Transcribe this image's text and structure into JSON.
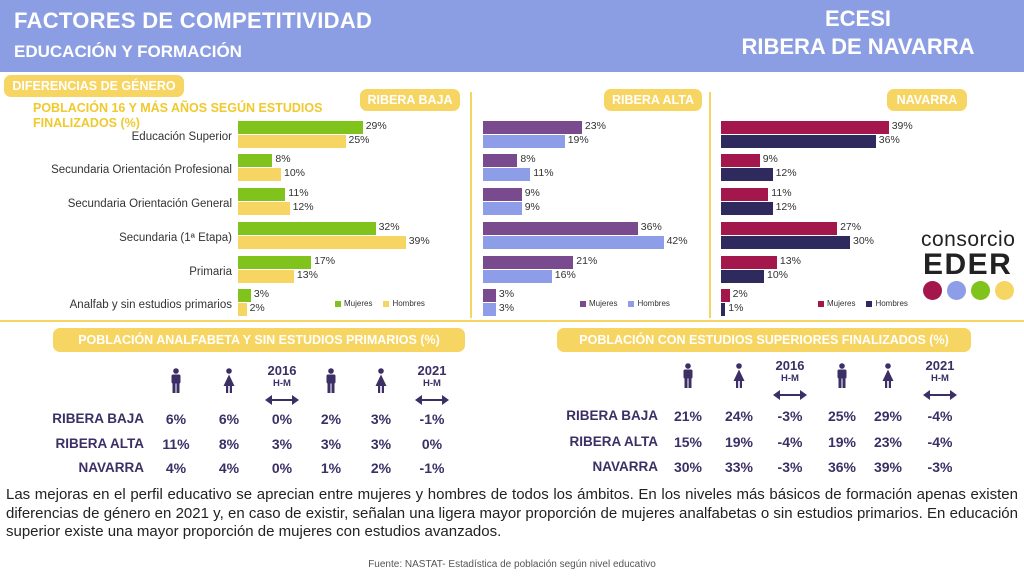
{
  "header": {
    "title": "FACTORES DE COMPETITIVIDAD",
    "subtitle": "EDUCACIÓN Y FORMACIÓN",
    "right_line1": "ECESI",
    "right_line2": "RIBERA DE NAVARRA"
  },
  "section_pill": "DIFERENCIAS DE GÉNERO",
  "chart_subtitle": "POBLACIÓN 16 Y MÁS AÑOS SEGÚN ESTUDIOS FINALIZADOS (%)",
  "categories": [
    "Educación Superior",
    "Secundaria Orientación Profesional",
    "Secundaria  Orientación General",
    "Secundaria (1ª Etapa)",
    "Primaria",
    "Analfab y sin estudios primarios"
  ],
  "chart_data": [
    {
      "type": "bar",
      "title": "RIBERA BAJA",
      "categories": [
        "Educación Superior",
        "Secundaria Orientación Profesional",
        "Secundaria  Orientación General",
        "Secundaria (1ª Etapa)",
        "Primaria",
        "Analfab y sin estudios primarios"
      ],
      "series": [
        {
          "name": "Mujeres",
          "values": [
            29,
            8,
            11,
            32,
            17,
            3
          ],
          "labels": [
            "29%",
            "8%",
            "11%",
            "32%",
            "17%",
            "3%"
          ],
          "color": "#7fc31c"
        },
        {
          "name": "Hombres",
          "values": [
            25,
            10,
            12,
            39,
            13,
            2
          ],
          "labels": [
            "25%",
            "10%",
            "12%",
            "39%",
            "13%",
            "2%"
          ],
          "color": "#f7d562"
        }
      ]
    },
    {
      "type": "bar",
      "title": "RIBERA ALTA",
      "categories": [
        "Educación Superior",
        "Secundaria Orientación Profesional",
        "Secundaria  Orientación General",
        "Secundaria (1ª Etapa)",
        "Primaria",
        "Analfab y sin estudios primarios"
      ],
      "series": [
        {
          "name": "Mujeres",
          "values": [
            23,
            8,
            9,
            36,
            21,
            3
          ],
          "labels": [
            "23%",
            "8%",
            "9%",
            "36%",
            "21%",
            "3%"
          ],
          "color": "#7a4a8e"
        },
        {
          "name": "Hombres",
          "values": [
            19,
            11,
            9,
            42,
            16,
            3
          ],
          "labels": [
            "19%",
            "11%",
            "9%",
            "42%",
            "16%",
            "3%"
          ],
          "color": "#8d9de8"
        }
      ]
    },
    {
      "type": "bar",
      "title": "NAVARRA",
      "categories": [
        "Educación Superior",
        "Secundaria Orientación Profesional",
        "Secundaria  Orientación General",
        "Secundaria (1ª Etapa)",
        "Primaria",
        "Analfab y sin estudios primarios"
      ],
      "series": [
        {
          "name": "Mujeres",
          "values": [
            39,
            9,
            11,
            27,
            13,
            2
          ],
          "labels": [
            "39%",
            "9%",
            "11%",
            "27%",
            "13%",
            "2%"
          ],
          "color": "#a3174d"
        },
        {
          "name": "Hombres",
          "values": [
            36,
            12,
            12,
            30,
            10,
            1
          ],
          "labels": [
            "36%",
            "12%",
            "12%",
            "30%",
            "10%",
            "1%"
          ],
          "color": "#2e2a5e"
        }
      ]
    }
  ],
  "tables": [
    {
      "title": "POBLACIÓN ANALFABETA Y SIN ESTUDIOS PRIMARIOS (%)",
      "year1": "2016",
      "year2": "2021",
      "hm": "H-M",
      "rows": [
        {
          "label": "RIBERA BAJA",
          "values": [
            "6%",
            "6%",
            "0%",
            "2%",
            "3%",
            "-1%"
          ]
        },
        {
          "label": "RIBERA ALTA",
          "values": [
            "11%",
            "8%",
            "3%",
            "3%",
            "3%",
            "0%"
          ]
        },
        {
          "label": "NAVARRA",
          "values": [
            "4%",
            "4%",
            "0%",
            "1%",
            "2%",
            "-1%"
          ]
        }
      ]
    },
    {
      "title": "POBLACIÓN CON ESTUDIOS SUPERIORES FINALIZADOS (%)",
      "year1": "2016",
      "year2": "2021",
      "hm": "H-M",
      "rows": [
        {
          "label": "RIBERA BAJA",
          "values": [
            "21%",
            "24%",
            "-3%",
            "25%",
            "29%",
            "-4%"
          ]
        },
        {
          "label": "RIBERA ALTA",
          "values": [
            "15%",
            "19%",
            "-4%",
            "19%",
            "23%",
            "-4%"
          ]
        },
        {
          "label": "NAVARRA",
          "values": [
            "30%",
            "33%",
            "-3%",
            "36%",
            "39%",
            "-3%"
          ]
        }
      ]
    }
  ],
  "note": "Las mejoras en el perfil educativo se aprecian entre mujeres y hombres de todos los ámbitos. En los niveles más básicos de formación apenas existen diferencias de género en 2021 y, en caso de existir, señalan una ligera mayor proporción de mujeres analfabetas o sin estudios primarios. En educación superior existe una mayor proporción de mujeres con estudios avanzados.",
  "source": "Fuente: NASTAT-  Estadística de población según nivel educativo",
  "logo": {
    "line1": "consorcio",
    "line2": "EDER",
    "colors": [
      "#a3174d",
      "#8d9de8",
      "#7fc31c",
      "#f7d562"
    ]
  },
  "icons": {
    "man": "man-icon",
    "woman": "woman-icon",
    "arrow": "double-arrow-icon"
  }
}
